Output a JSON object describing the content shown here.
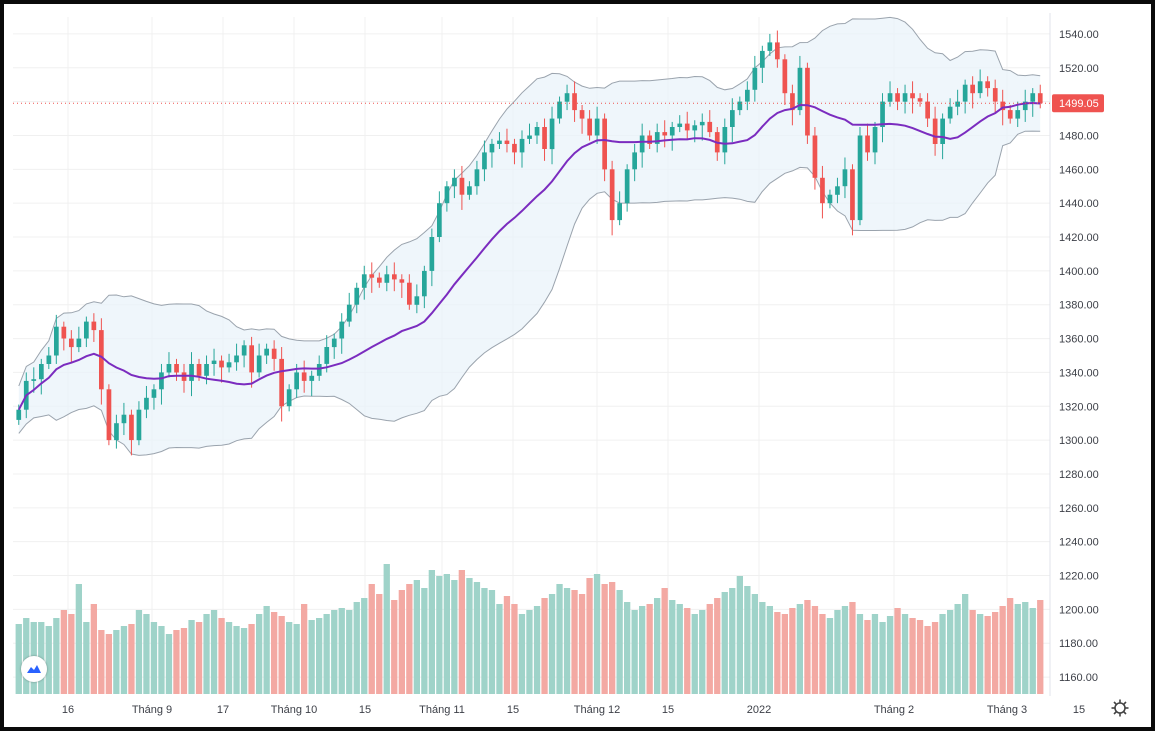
{
  "chart_data": {
    "type": "candlestick",
    "title": "",
    "xlabel": "",
    "ylabel": "",
    "ylim": [
      1150,
      1550
    ],
    "y_ticks": [
      "1540.00",
      "1520.00",
      "1500.00",
      "1480.00",
      "1460.00",
      "1440.00",
      "1420.00",
      "1400.00",
      "1380.00",
      "1360.00",
      "1340.00",
      "1320.00",
      "1300.00",
      "1280.00",
      "1260.00",
      "1240.00",
      "1220.00",
      "1200.00",
      "1180.00",
      "1160.00"
    ],
    "x_ticks": [
      "16",
      "Tháng 9",
      "17",
      "Tháng 10",
      "15",
      "Tháng 11",
      "15",
      "Tháng 12",
      "15",
      "2022",
      "Tháng 2",
      "Tháng 3",
      "15"
    ],
    "last_price_label": "1499.05",
    "last_price": 1499.05,
    "grid": true,
    "overlays": [
      "Bollinger Bands",
      "Moving Average (middle band)"
    ],
    "candles_close": [
      1318,
      1335,
      1336,
      1345,
      1350,
      1367,
      1360,
      1355,
      1360,
      1370,
      1365,
      1330,
      1300,
      1310,
      1315,
      1300,
      1318,
      1325,
      1330,
      1340,
      1345,
      1340,
      1335,
      1345,
      1338,
      1345,
      1347,
      1343,
      1346,
      1350,
      1356,
      1340,
      1350,
      1354,
      1348,
      1320,
      1330,
      1340,
      1335,
      1338,
      1345,
      1355,
      1360,
      1370,
      1380,
      1390,
      1398,
      1396,
      1393,
      1398,
      1395,
      1393,
      1380,
      1385,
      1400,
      1420,
      1440,
      1450,
      1455,
      1445,
      1450,
      1460,
      1470,
      1475,
      1477,
      1475,
      1470,
      1478,
      1480,
      1485,
      1472,
      1490,
      1500,
      1505,
      1495,
      1490,
      1480,
      1490,
      1460,
      1430,
      1440,
      1460,
      1470,
      1480,
      1475,
      1482,
      1480,
      1485,
      1487,
      1483,
      1486,
      1488,
      1482,
      1470,
      1485,
      1495,
      1500,
      1507,
      1520,
      1530,
      1535,
      1525,
      1505,
      1495,
      1520,
      1480,
      1455,
      1440,
      1445,
      1450,
      1460,
      1430,
      1480,
      1470,
      1485,
      1500,
      1505,
      1500,
      1505,
      1502,
      1500,
      1490,
      1475,
      1490,
      1497,
      1500,
      1510,
      1505,
      1512,
      1508,
      1500,
      1495,
      1490,
      1495,
      1500,
      1505,
      1499.05
    ],
    "volume_relative": [
      0.35,
      0.38,
      0.36,
      0.36,
      0.34,
      0.38,
      0.42,
      0.4,
      0.55,
      0.36,
      0.45,
      0.32,
      0.3,
      0.32,
      0.34,
      0.35,
      0.42,
      0.4,
      0.36,
      0.34,
      0.3,
      0.32,
      0.33,
      0.37,
      0.36,
      0.4,
      0.42,
      0.38,
      0.36,
      0.34,
      0.33,
      0.35,
      0.4,
      0.44,
      0.41,
      0.39,
      0.36,
      0.35,
      0.45,
      0.37,
      0.38,
      0.4,
      0.42,
      0.43,
      0.42,
      0.46,
      0.48,
      0.55,
      0.5,
      0.65,
      0.47,
      0.52,
      0.55,
      0.57,
      0.53,
      0.62,
      0.59,
      0.6,
      0.57,
      0.62,
      0.58,
      0.56,
      0.53,
      0.52,
      0.45,
      0.49,
      0.45,
      0.4,
      0.42,
      0.44,
      0.48,
      0.5,
      0.55,
      0.53,
      0.52,
      0.5,
      0.58,
      0.6,
      0.55,
      0.56,
      0.52,
      0.46,
      0.42,
      0.44,
      0.45,
      0.48,
      0.53,
      0.47,
      0.45,
      0.43,
      0.4,
      0.42,
      0.45,
      0.48,
      0.51,
      0.53,
      0.59,
      0.54,
      0.5,
      0.46,
      0.44,
      0.41,
      0.4,
      0.43,
      0.45,
      0.47,
      0.44,
      0.4,
      0.38,
      0.42,
      0.44,
      0.46,
      0.4,
      0.37,
      0.4,
      0.36,
      0.39,
      0.43,
      0.4,
      0.38,
      0.37,
      0.34,
      0.36,
      0.4,
      0.42,
      0.45,
      0.5,
      0.42,
      0.4,
      0.39,
      0.41,
      0.44,
      0.48,
      0.45,
      0.46,
      0.43,
      0.47
    ]
  },
  "colors": {
    "up": "#26a69a",
    "down": "#ef5350",
    "band_fill": "#eaf3f9",
    "band_line": "#9aa3ad",
    "ma_line": "#7b2cbf",
    "volume_up": "#9fd3c9",
    "volume_down": "#f3a9a3",
    "price_tag": "#ef5350",
    "grid": "#f0f0f0"
  },
  "icons": {
    "logo": "tradingview-logo-icon",
    "settings": "gear-icon"
  }
}
